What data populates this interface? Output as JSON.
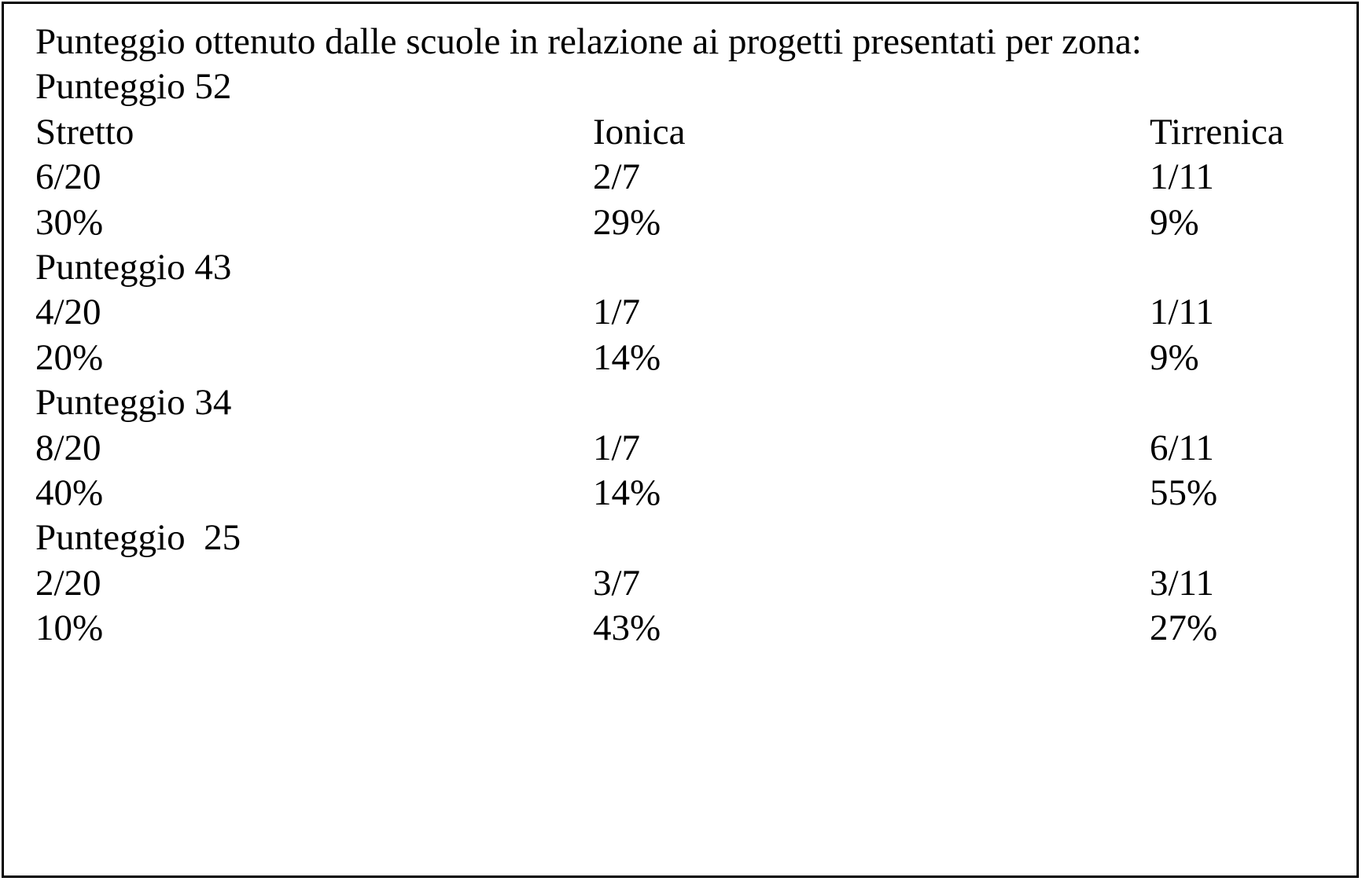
{
  "title": "Punteggio ottenuto dalle scuole in relazione ai progetti presentati per zona:",
  "zones": [
    "Stretto",
    "Ionica",
    "Tirrenica"
  ],
  "groups": [
    {
      "label": "Punteggio 52",
      "fractions": [
        "6/20",
        "2/7",
        "1/11"
      ],
      "percentages": [
        "30%",
        "29%",
        "9%"
      ]
    },
    {
      "label": "Punteggio 43",
      "fractions": [
        "4/20",
        "1/7",
        "1/11"
      ],
      "percentages": [
        "20%",
        "14%",
        "9%"
      ]
    },
    {
      "label": "Punteggio 34",
      "fractions": [
        "8/20",
        "1/7",
        "6/11"
      ],
      "percentages": [
        "40%",
        "14%",
        "55%"
      ]
    },
    {
      "label": "Punteggio  25",
      "fractions": [
        "2/20",
        "3/7",
        "3/11"
      ],
      "percentages": [
        "10%",
        "43%",
        "27%"
      ]
    }
  ]
}
